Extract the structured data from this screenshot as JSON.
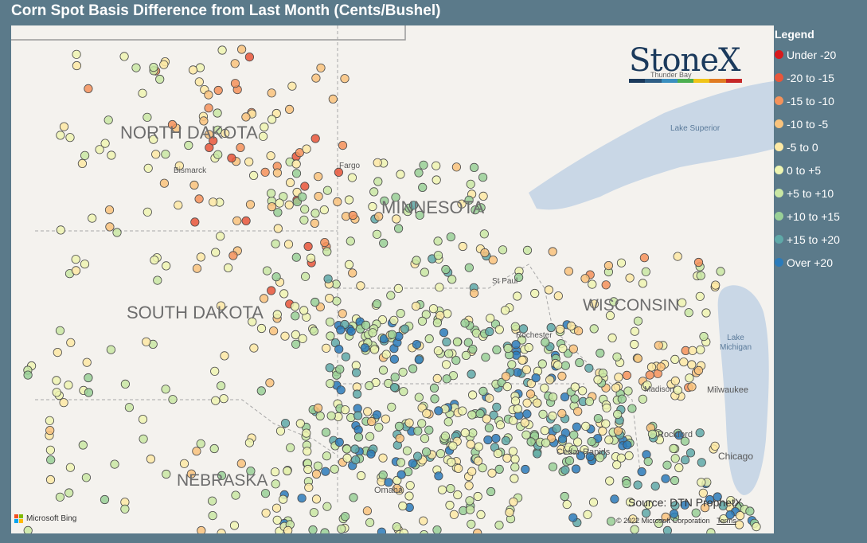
{
  "title": "Corn Spot Basis Difference from Last Month (Cents/Bushel)",
  "logo_text": "StoneX",
  "logo_colors": [
    "#1b3a5c",
    "#2f5e85",
    "#3a8fbf",
    "#4caf50",
    "#f0c419",
    "#e07b22",
    "#c62828"
  ],
  "legend": {
    "title": "Legend",
    "items": [
      {
        "label": "Under -20",
        "color": "#d7191c"
      },
      {
        "label": "-20 to -15",
        "color": "#e8563a"
      },
      {
        "label": "-15 to -10",
        "color": "#f4925a"
      },
      {
        "label": "-10 to -5",
        "color": "#f9c37c"
      },
      {
        "label": "-5 to 0",
        "color": "#fde9a4"
      },
      {
        "label": "0 to +5",
        "color": "#eef5b1"
      },
      {
        "label": "+5 to +10",
        "color": "#c9e7a3"
      },
      {
        "label": "+10 to +15",
        "color": "#99d097"
      },
      {
        "label": "+15 to +20",
        "color": "#5fa9a8"
      },
      {
        "label": "Over +20",
        "color": "#2b7bba"
      }
    ]
  },
  "map": {
    "states": [
      "NORTH DAKOTA",
      "MINNESOTA",
      "SOUTH DAKOTA",
      "WISCONSIN",
      "NEBRASKA"
    ],
    "cities": [
      "Bismarck",
      "Fargo",
      "St Paul",
      "Rochester",
      "Madison",
      "Milwaukee",
      "Rockford",
      "Cedar Rapids",
      "Chicago",
      "Omaha"
    ],
    "water": [
      "Lake Superior",
      "Lake Michigan"
    ],
    "other_labels": [
      "Thunder Bay"
    ]
  },
  "source": "Source: DTN ProphetX",
  "copyright": "© 2022 Microsoft Corporation",
  "terms": "Terms",
  "bing": "Microsoft Bing"
}
